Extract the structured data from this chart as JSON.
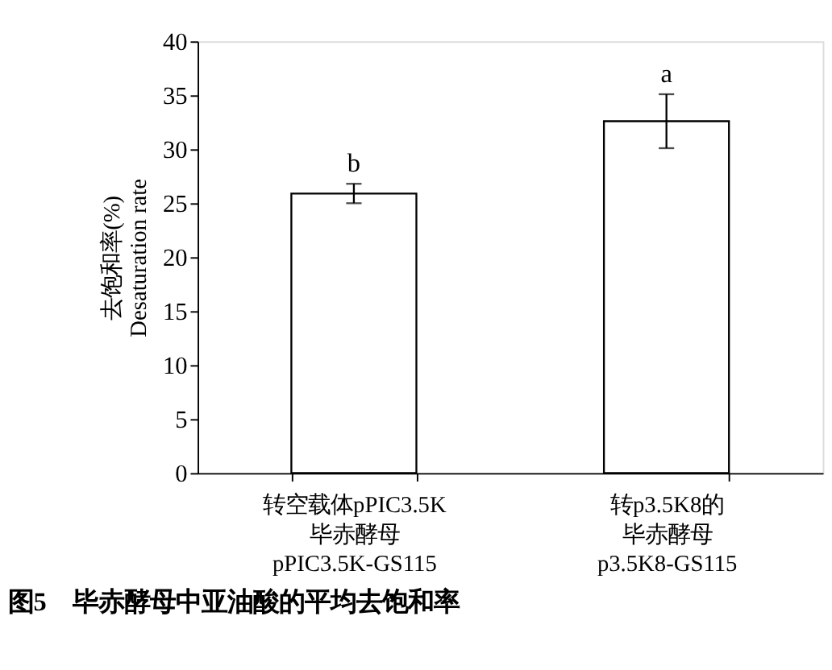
{
  "chart_data": {
    "type": "bar",
    "title": "图5　毕赤酵母中亚油酸的平均去饱和率",
    "ylabel": "去饱和率(%)\nDesaturation rate",
    "categories": [
      "转空载体pPIC3.5K毕赤酵母 pPIC3.5K-GS115",
      "转p3.5K8的毕赤酵母 p3.5K8-GS115"
    ],
    "values": [
      25.9,
      32.6
    ],
    "errors": [
      0.9,
      2.5
    ],
    "color": "#ffffff",
    "ylim": [
      0,
      40
    ],
    "yticks": [
      0,
      5,
      10,
      15,
      20,
      25,
      30,
      35,
      40
    ],
    "annotations": [
      {
        "text": "b",
        "x": "转空载体pPIC3.5K毕赤酵母 pPIC3.5K-GS115",
        "y": 26.8
      },
      {
        "text": "a",
        "x": "转p3.5K8的毕赤酵母 p3.5K8-GS115",
        "y": 35.1
      }
    ],
    "grid": false
  }
}
